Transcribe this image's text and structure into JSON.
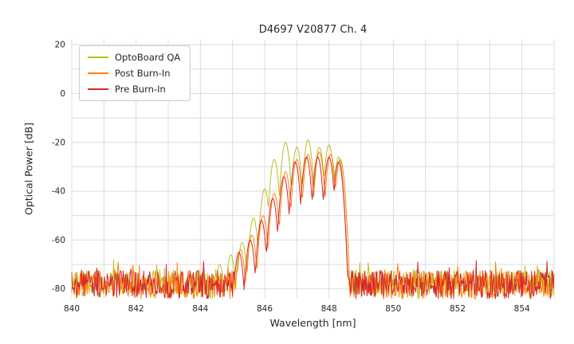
{
  "chart_data": {
    "type": "line",
    "title": "D4697 V20877 Ch. 4",
    "xlabel": "Wavelength [nm]",
    "ylabel": "Optical Power [dB]",
    "xlim": [
      840,
      855
    ],
    "ylim": [
      -84,
      22
    ],
    "xticks": [
      840,
      842,
      844,
      846,
      848,
      850,
      852,
      854
    ],
    "yticks": [
      20,
      0,
      -20,
      -40,
      -60,
      -80
    ],
    "grid": {
      "on": true,
      "x_step_nm": 1,
      "y_step_db": 10,
      "color": "#dcdcdc"
    },
    "legend": {
      "position": "upper left"
    },
    "sample_step_nm": 0.02,
    "lobe_falloff_db_per_nm2": 600,
    "series": [
      {
        "name": "OptoBoard QA",
        "color": "#bcbd22",
        "noise_floor_db": -77.5,
        "noise_spread_db": 5.5,
        "seed": 101,
        "lobe_peaks": [
          [
            844.6,
            -70
          ],
          [
            844.95,
            -66
          ],
          [
            845.3,
            -61
          ],
          [
            845.65,
            -51
          ],
          [
            846.0,
            -39
          ],
          [
            846.3,
            -27
          ],
          [
            846.65,
            -20
          ],
          [
            847.0,
            -22
          ],
          [
            847.35,
            -19
          ],
          [
            847.7,
            -22
          ],
          [
            848.0,
            -21
          ],
          [
            848.3,
            -26
          ]
        ]
      },
      {
        "name": "Post Burn-In",
        "color": "#ff7f0e",
        "noise_floor_db": -78,
        "noise_spread_db": 5.5,
        "seed": 202,
        "lobe_peaks": [
          [
            845.25,
            -64
          ],
          [
            845.6,
            -58
          ],
          [
            845.95,
            -50
          ],
          [
            846.3,
            -41
          ],
          [
            846.65,
            -32
          ],
          [
            847.0,
            -27
          ],
          [
            847.35,
            -25
          ],
          [
            847.7,
            -24
          ],
          [
            848.05,
            -25
          ],
          [
            848.35,
            -27
          ]
        ]
      },
      {
        "name": "Pre Burn-In",
        "color": "#d62728",
        "noise_floor_db": -78,
        "noise_spread_db": 5.5,
        "seed": 303,
        "lobe_peaks": [
          [
            845.2,
            -65
          ],
          [
            845.55,
            -60
          ],
          [
            845.9,
            -52
          ],
          [
            846.25,
            -43
          ],
          [
            846.6,
            -34
          ],
          [
            846.95,
            -28
          ],
          [
            847.3,
            -26
          ],
          [
            847.65,
            -26
          ],
          [
            848.0,
            -26
          ],
          [
            848.3,
            -28
          ]
        ]
      }
    ]
  }
}
